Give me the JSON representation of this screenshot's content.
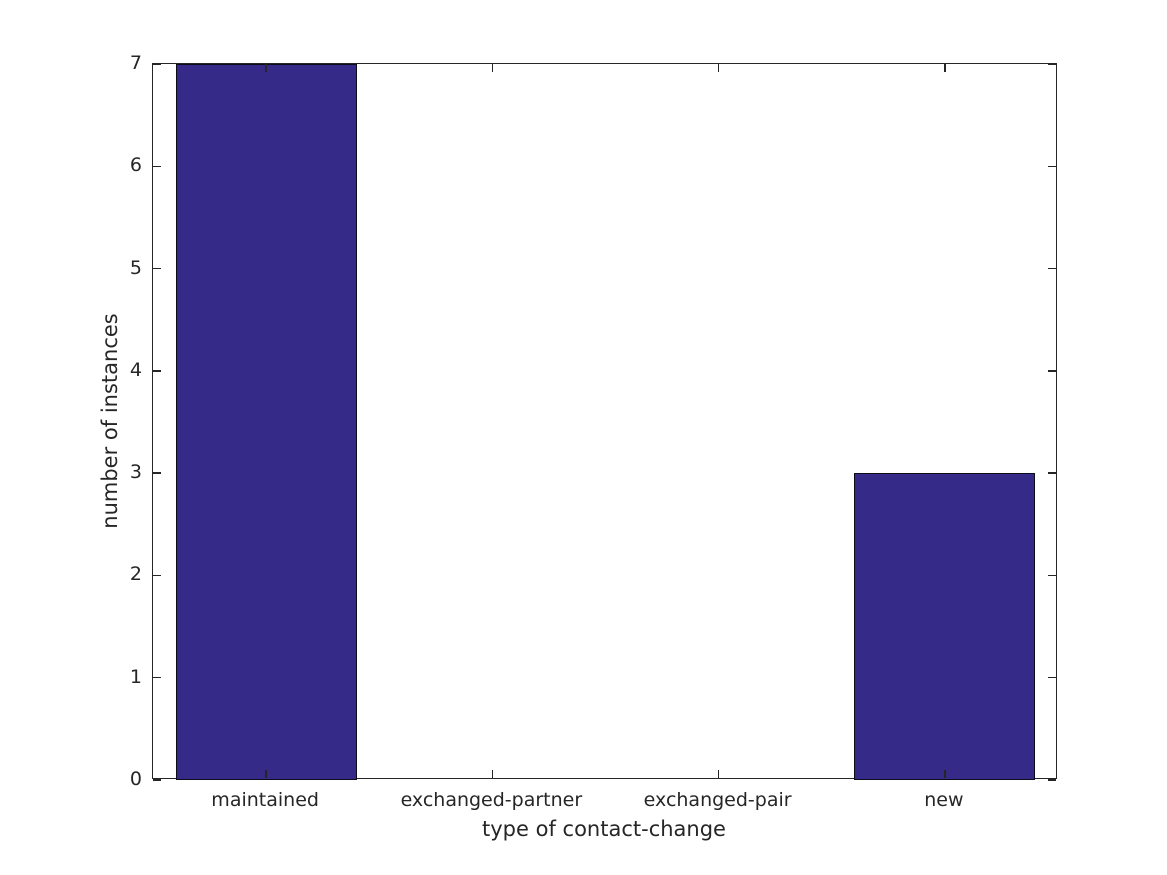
{
  "chart_data": {
    "type": "bar",
    "title": "",
    "categories": [
      "maintained",
      "exchanged-partner",
      "exchanged-pair",
      "new"
    ],
    "values": [
      7,
      0,
      0,
      3
    ],
    "xlabel": "type of contact-change",
    "ylabel": "number of instances",
    "ylim": [
      0,
      7
    ],
    "yticks": [
      0,
      1,
      2,
      3,
      4,
      5,
      6,
      7
    ],
    "bar_width_fraction": 0.8,
    "grid": false,
    "legend": "none",
    "axes_box": true,
    "tick_direction": "in",
    "colors": {
      "bar_fill": "#352A87",
      "bar_edge": "#0D0D1A",
      "axis": "#262626",
      "text": "#262626",
      "background": "#FFFFFF"
    }
  }
}
